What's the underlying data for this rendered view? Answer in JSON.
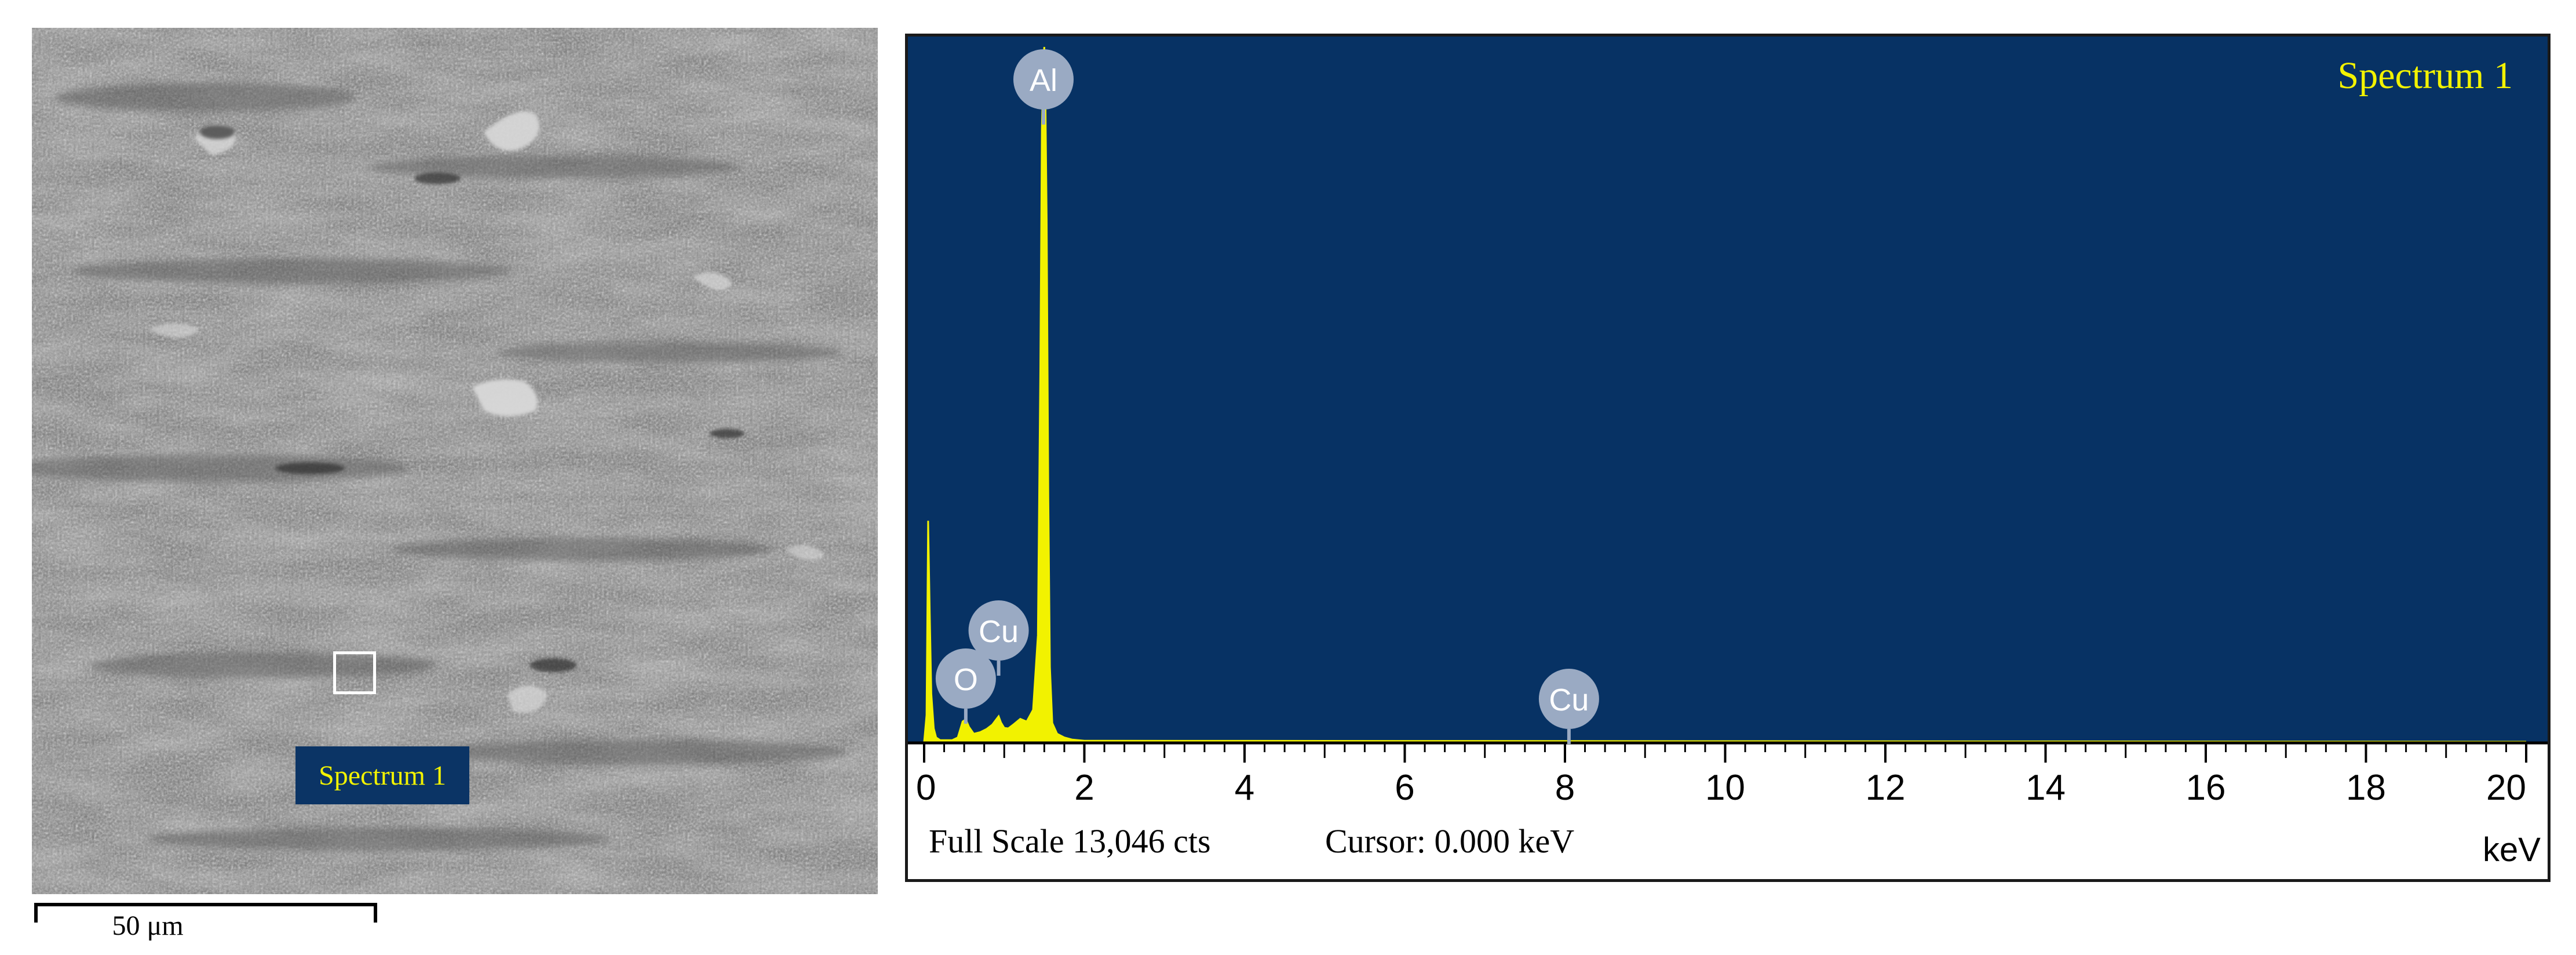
{
  "sem_image": {
    "region_label": "Spectrum 1",
    "scale_bar_label": "50 μm"
  },
  "chart_data": {
    "type": "line",
    "title": "Spectrum 1",
    "xlabel": "keV",
    "ylabel": "",
    "xlim": [
      0,
      20
    ],
    "ylim": [
      0,
      13046
    ],
    "x_ticks": [
      0,
      2,
      4,
      6,
      8,
      10,
      12,
      14,
      16,
      18,
      20
    ],
    "x_tick_labels": [
      "0",
      "2",
      "4",
      "6",
      "8",
      "10",
      "12",
      "14",
      "16",
      "18",
      "20"
    ],
    "series": [
      {
        "x": [
          0.0,
          0.03,
          0.05,
          0.07,
          0.09,
          0.12,
          0.15,
          0.2,
          0.28,
          0.35,
          0.42,
          0.48,
          0.52,
          0.56,
          0.62,
          0.7,
          0.78,
          0.85,
          0.9,
          0.93,
          0.96,
          1.0,
          1.05,
          1.12,
          1.2,
          1.28,
          1.36,
          1.42,
          1.45,
          1.47,
          1.49,
          1.5,
          1.51,
          1.53,
          1.55,
          1.57,
          1.6,
          1.66,
          1.75,
          1.85,
          2.0,
          20.0
        ],
        "y": [
          0,
          500,
          4150,
          2400,
          900,
          250,
          80,
          30,
          30,
          30,
          80,
          380,
          420,
          280,
          150,
          180,
          240,
          320,
          420,
          480,
          360,
          260,
          250,
          330,
          430,
          380,
          600,
          2000,
          7000,
          11500,
          12900,
          13046,
          12600,
          9800,
          4600,
          1400,
          350,
          150,
          80,
          40,
          20,
          0
        ]
      }
    ],
    "peak_labels": [
      {
        "label": "Al",
        "x": 1.49
      },
      {
        "label": "O",
        "x": 0.52
      },
      {
        "label": "Cu",
        "x": 0.93
      },
      {
        "label": "Cu",
        "x": 8.05
      }
    ],
    "footer": {
      "full_scale": "Full Scale 13,046 cts",
      "cursor": "Cursor: 0.000 keV"
    },
    "colors": {
      "plot_background": "#073264",
      "trace": "#f2f200",
      "marker": "#9aaac3"
    }
  }
}
